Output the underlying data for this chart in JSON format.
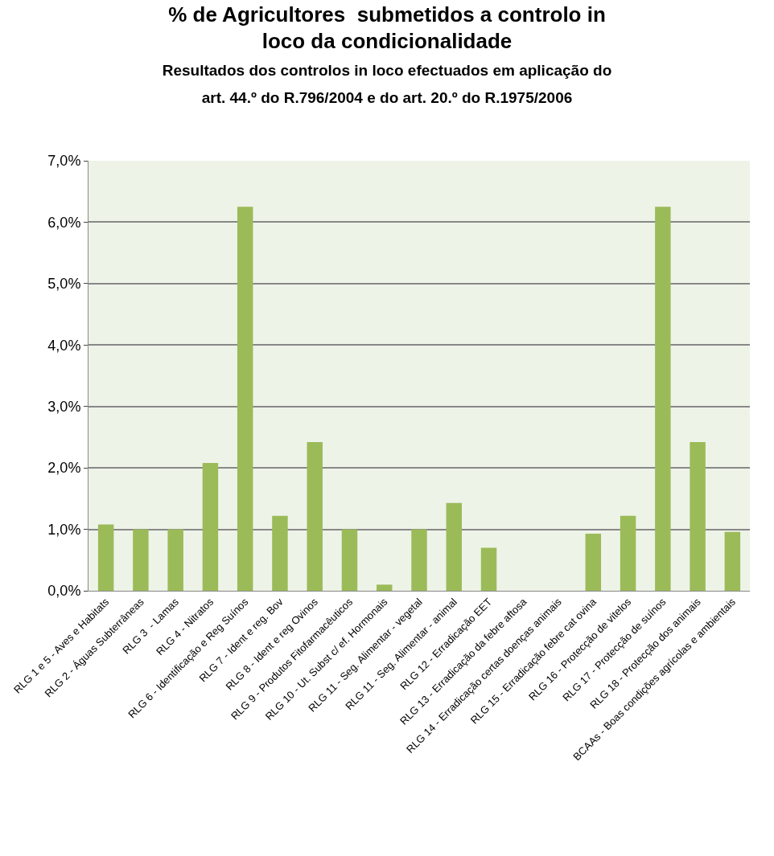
{
  "chart_data": {
    "type": "bar",
    "title": "% de Agricultores  submetidos a controlo in loco da condicionalidade",
    "subtitle": "Resultados dos controlos in loco efectuados em aplicação do art. 44.º do R.796/2004 e do art. 20.º do R.1975/2006",
    "categories": [
      "RLG 1 e 5 - Aves e Habitats",
      "RLG 2 - Águas Subterrâneas",
      "RLG 3  - Lamas",
      "RLG 4 - Nitratos",
      "RLG 6 - Identificação e Reg Suínos",
      "RLG 7 - Ident e reg. Bov",
      "RLG 8 - Ident e reg Ovinos",
      "RLG 9 - Produtos Fitofarmacêuticos",
      "RLG 10 - Ut. Subst c/ ef. Hormonais",
      "RLG 11 - Seg. Alimentar - vegetal",
      "RLG 11 - Seg. Alimentar - animal",
      "RLG 12 - Erradicação EET",
      "RLG 13 - Erradicação da febre aftosa",
      "RLG 14 - Erradicação certas doenças animais",
      "RLG 15 - Erradicação febre cat ovina",
      "RLG 16 - Protecção de vitelos",
      "RLG 17 - Protecção de suínos",
      "RLG 18 - Protecção dos animais",
      "BCAAs - Boas condições agrícolas e ambientais"
    ],
    "values": [
      1.08,
      1.0,
      1.0,
      2.08,
      6.25,
      1.22,
      2.42,
      1.0,
      0.1,
      1.0,
      1.43,
      0.7,
      0,
      0,
      0.93,
      1.22,
      6.25,
      2.42,
      0.96
    ],
    "color": "#9bbb59",
    "ylim": [
      0,
      7
    ],
    "yticks": [
      {
        "value": 0,
        "label": "0,0%"
      },
      {
        "value": 1,
        "label": "1,0%"
      },
      {
        "value": 2,
        "label": "2,0%"
      },
      {
        "value": 3,
        "label": "3,0%"
      },
      {
        "value": 4,
        "label": "4,0%"
      },
      {
        "value": 5,
        "label": "5,0%"
      },
      {
        "value": 6,
        "label": "6,0%"
      },
      {
        "value": 7,
        "label": "7,0%"
      }
    ],
    "grid": "y"
  }
}
